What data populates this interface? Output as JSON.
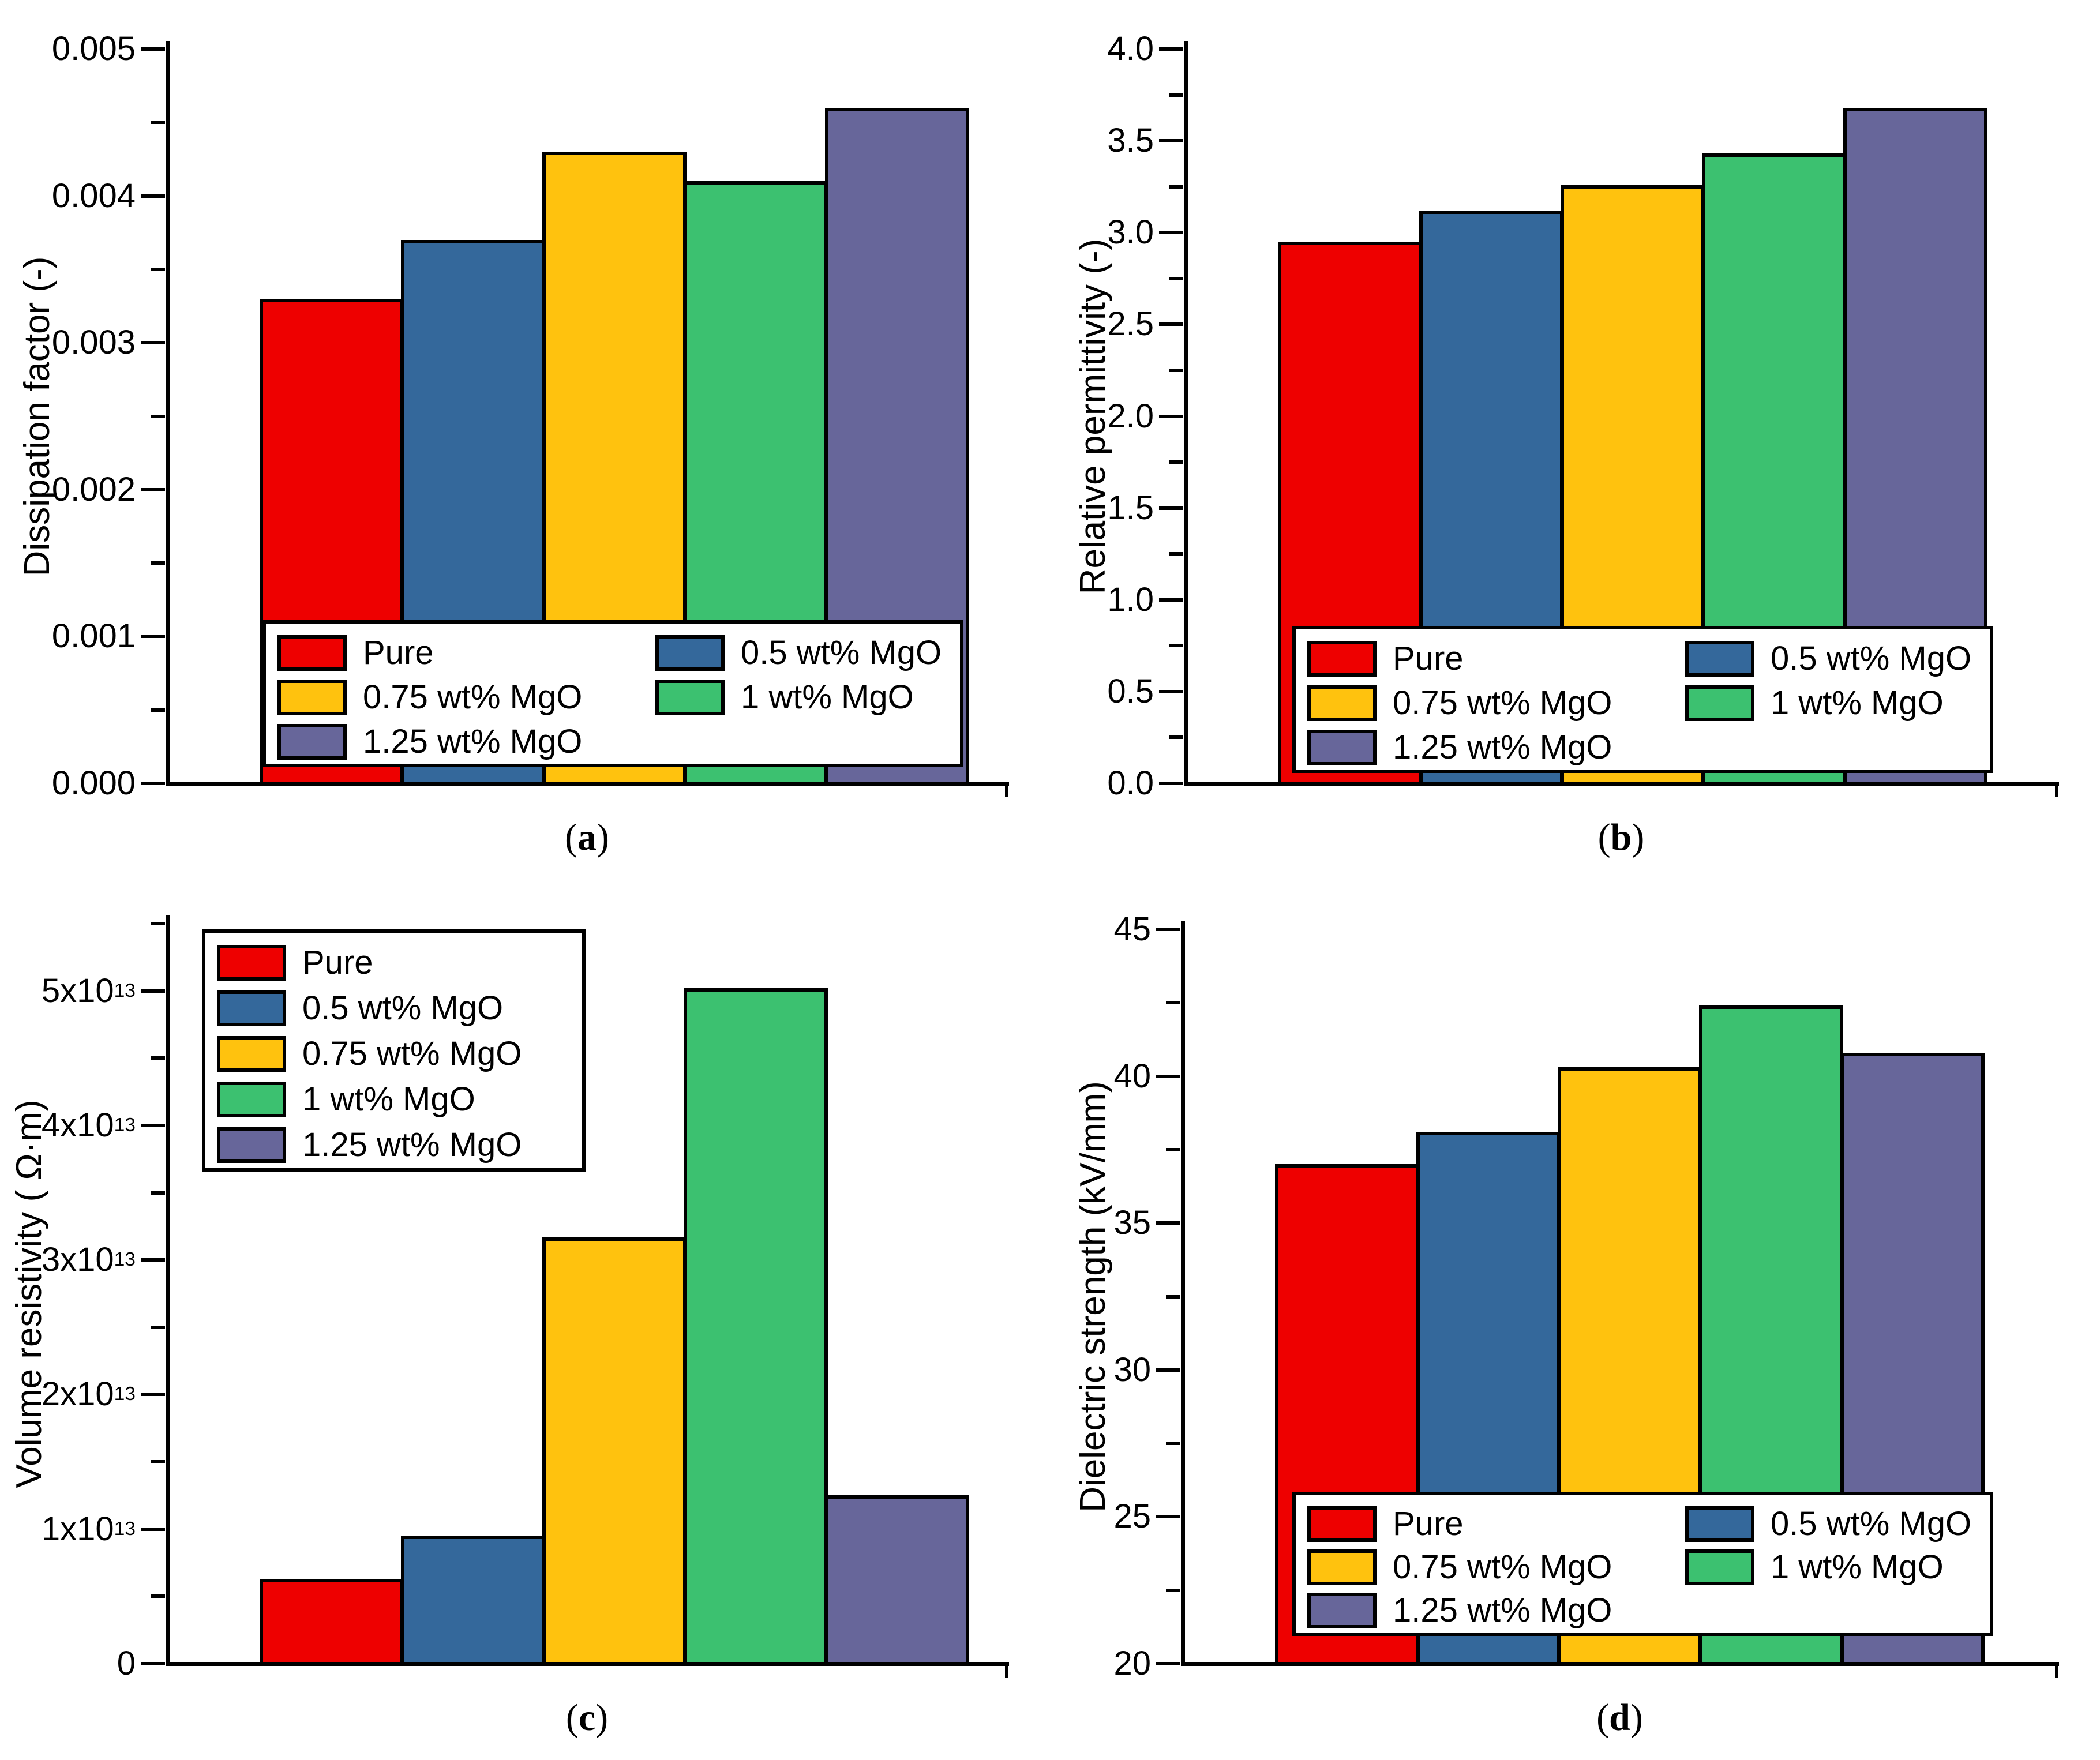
{
  "figure": {
    "background": "#FFFFFF",
    "line_color": "#000000"
  },
  "series": [
    {
      "label": "Pure",
      "color": "#EE0000"
    },
    {
      "label": "0.5 wt% MgO",
      "color": "#34689B"
    },
    {
      "label": "0.75 wt% MgO",
      "color": "#FFC20E"
    },
    {
      "label": "1 wt% MgO",
      "color": "#3CC170"
    },
    {
      "label": "1.25 wt% MgO",
      "color": "#67669A"
    }
  ],
  "chart_data": [
    {
      "type": "bar",
      "panel": "a",
      "caption_parts": [
        "(",
        "a",
        ")"
      ],
      "title": "",
      "xlabel": "",
      "ylabel": "Dissipation factor (-)",
      "categories": [
        "Pure",
        "0.5 wt% MgO",
        "0.75 wt% MgO",
        "1 wt% MgO",
        "1.25 wt% MgO"
      ],
      "values": [
        0.0033,
        0.0037,
        0.0043,
        0.0041,
        0.0046
      ],
      "ylim": [
        0,
        0.005
      ],
      "grid": false,
      "yticks": [
        {
          "v": 0.0,
          "label": "0.000"
        },
        {
          "v": 0.001,
          "label": "0.001"
        },
        {
          "v": 0.002,
          "label": "0.002"
        },
        {
          "v": 0.003,
          "label": "0.003"
        },
        {
          "v": 0.004,
          "label": "0.004"
        },
        {
          "v": 0.005,
          "label": "0.005"
        }
      ],
      "legend": {
        "position": "bottom-center",
        "columns": 2,
        "rows": [
          [
            0,
            1
          ],
          [
            2,
            3
          ],
          [
            4
          ]
        ]
      }
    },
    {
      "type": "bar",
      "panel": "b",
      "caption_parts": [
        "(",
        "b",
        ")"
      ],
      "title": "",
      "xlabel": "",
      "ylabel": "Relative permittivity (-)",
      "categories": [
        "Pure",
        "0.5 wt% MgO",
        "0.75 wt% MgO",
        "1 wt% MgO",
        "1.25 wt% MgO"
      ],
      "values": [
        2.95,
        3.12,
        3.26,
        3.43,
        3.68
      ],
      "ylim": [
        0,
        4.0
      ],
      "grid": false,
      "yticks": [
        {
          "v": 0.0,
          "label": "0.0"
        },
        {
          "v": 0.5,
          "label": "0.5"
        },
        {
          "v": 1.0,
          "label": "1.0"
        },
        {
          "v": 1.5,
          "label": "1.5"
        },
        {
          "v": 2.0,
          "label": "2.0"
        },
        {
          "v": 2.5,
          "label": "2.5"
        },
        {
          "v": 3.0,
          "label": "3.0"
        },
        {
          "v": 3.5,
          "label": "3.5"
        },
        {
          "v": 4.0,
          "label": "4.0"
        }
      ],
      "legend": {
        "position": "bottom-center",
        "columns": 2,
        "rows": [
          [
            0,
            1
          ],
          [
            2,
            3
          ],
          [
            4
          ]
        ]
      }
    },
    {
      "type": "bar",
      "panel": "c",
      "caption_parts": [
        "(",
        "c",
        ")"
      ],
      "title": "",
      "xlabel": "",
      "ylabel": "Volume resistivity ( Ω·m)",
      "categories": [
        "Pure",
        "0.5 wt% MgO",
        "0.75 wt% MgO",
        "1 wt% MgO",
        "1.25 wt% MgO"
      ],
      "values": [
        6300000000000.0,
        9500000000000.0,
        31700000000000.0,
        50200000000000.0,
        12500000000000.0
      ],
      "ylim": [
        0,
        55000000000000.0
      ],
      "grid": false,
      "yticks": [
        {
          "v": 0,
          "label": "0"
        },
        {
          "v": 10000000000000.0,
          "label": "1x10^13"
        },
        {
          "v": 20000000000000.0,
          "label": "2x10^13"
        },
        {
          "v": 30000000000000.0,
          "label": "3x10^13"
        },
        {
          "v": 40000000000000.0,
          "label": "4x10^13"
        },
        {
          "v": 50000000000000.0,
          "label": "5x10^13"
        }
      ],
      "legend": {
        "position": "top-left",
        "columns": 1,
        "rows": [
          [
            0
          ],
          [
            1
          ],
          [
            2
          ],
          [
            3
          ],
          [
            4
          ]
        ]
      }
    },
    {
      "type": "bar",
      "panel": "d",
      "caption_parts": [
        "(",
        "d",
        ")"
      ],
      "title": "",
      "xlabel": "",
      "ylabel": "Dielectric strength (kV/mm)",
      "categories": [
        "Pure",
        "0.5 wt% MgO",
        "0.75 wt% MgO",
        "1 wt% MgO",
        "1.25 wt% MgO"
      ],
      "values": [
        37.0,
        38.1,
        40.3,
        42.4,
        40.8
      ],
      "ylim": [
        20,
        45
      ],
      "grid": false,
      "yticks": [
        {
          "v": 20,
          "label": "20"
        },
        {
          "v": 25,
          "label": "25"
        },
        {
          "v": 30,
          "label": "30"
        },
        {
          "v": 35,
          "label": "35"
        },
        {
          "v": 40,
          "label": "40"
        },
        {
          "v": 45,
          "label": "45"
        }
      ],
      "legend": {
        "position": "bottom-center",
        "columns": 2,
        "rows": [
          [
            0,
            1
          ],
          [
            2,
            3
          ],
          [
            4
          ]
        ]
      }
    }
  ]
}
